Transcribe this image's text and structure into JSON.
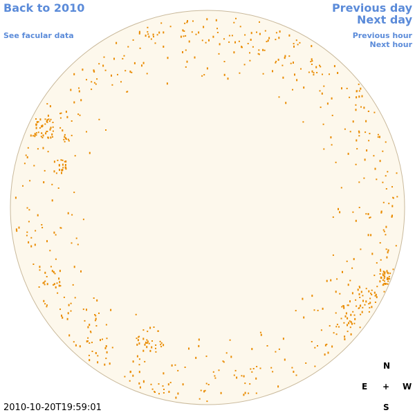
{
  "navigation": {
    "back": "Back to 2010",
    "previous_day": "Previous day",
    "next_day": "Next day",
    "facular_data": "See facular data",
    "previous_hour": "Previous hour",
    "next_hour": "Next hour"
  },
  "timestamp": "2010-10-20T19:59:01",
  "compass": {
    "north": "N",
    "east": "E",
    "center": "+",
    "west": "W",
    "south": "S"
  }
}
